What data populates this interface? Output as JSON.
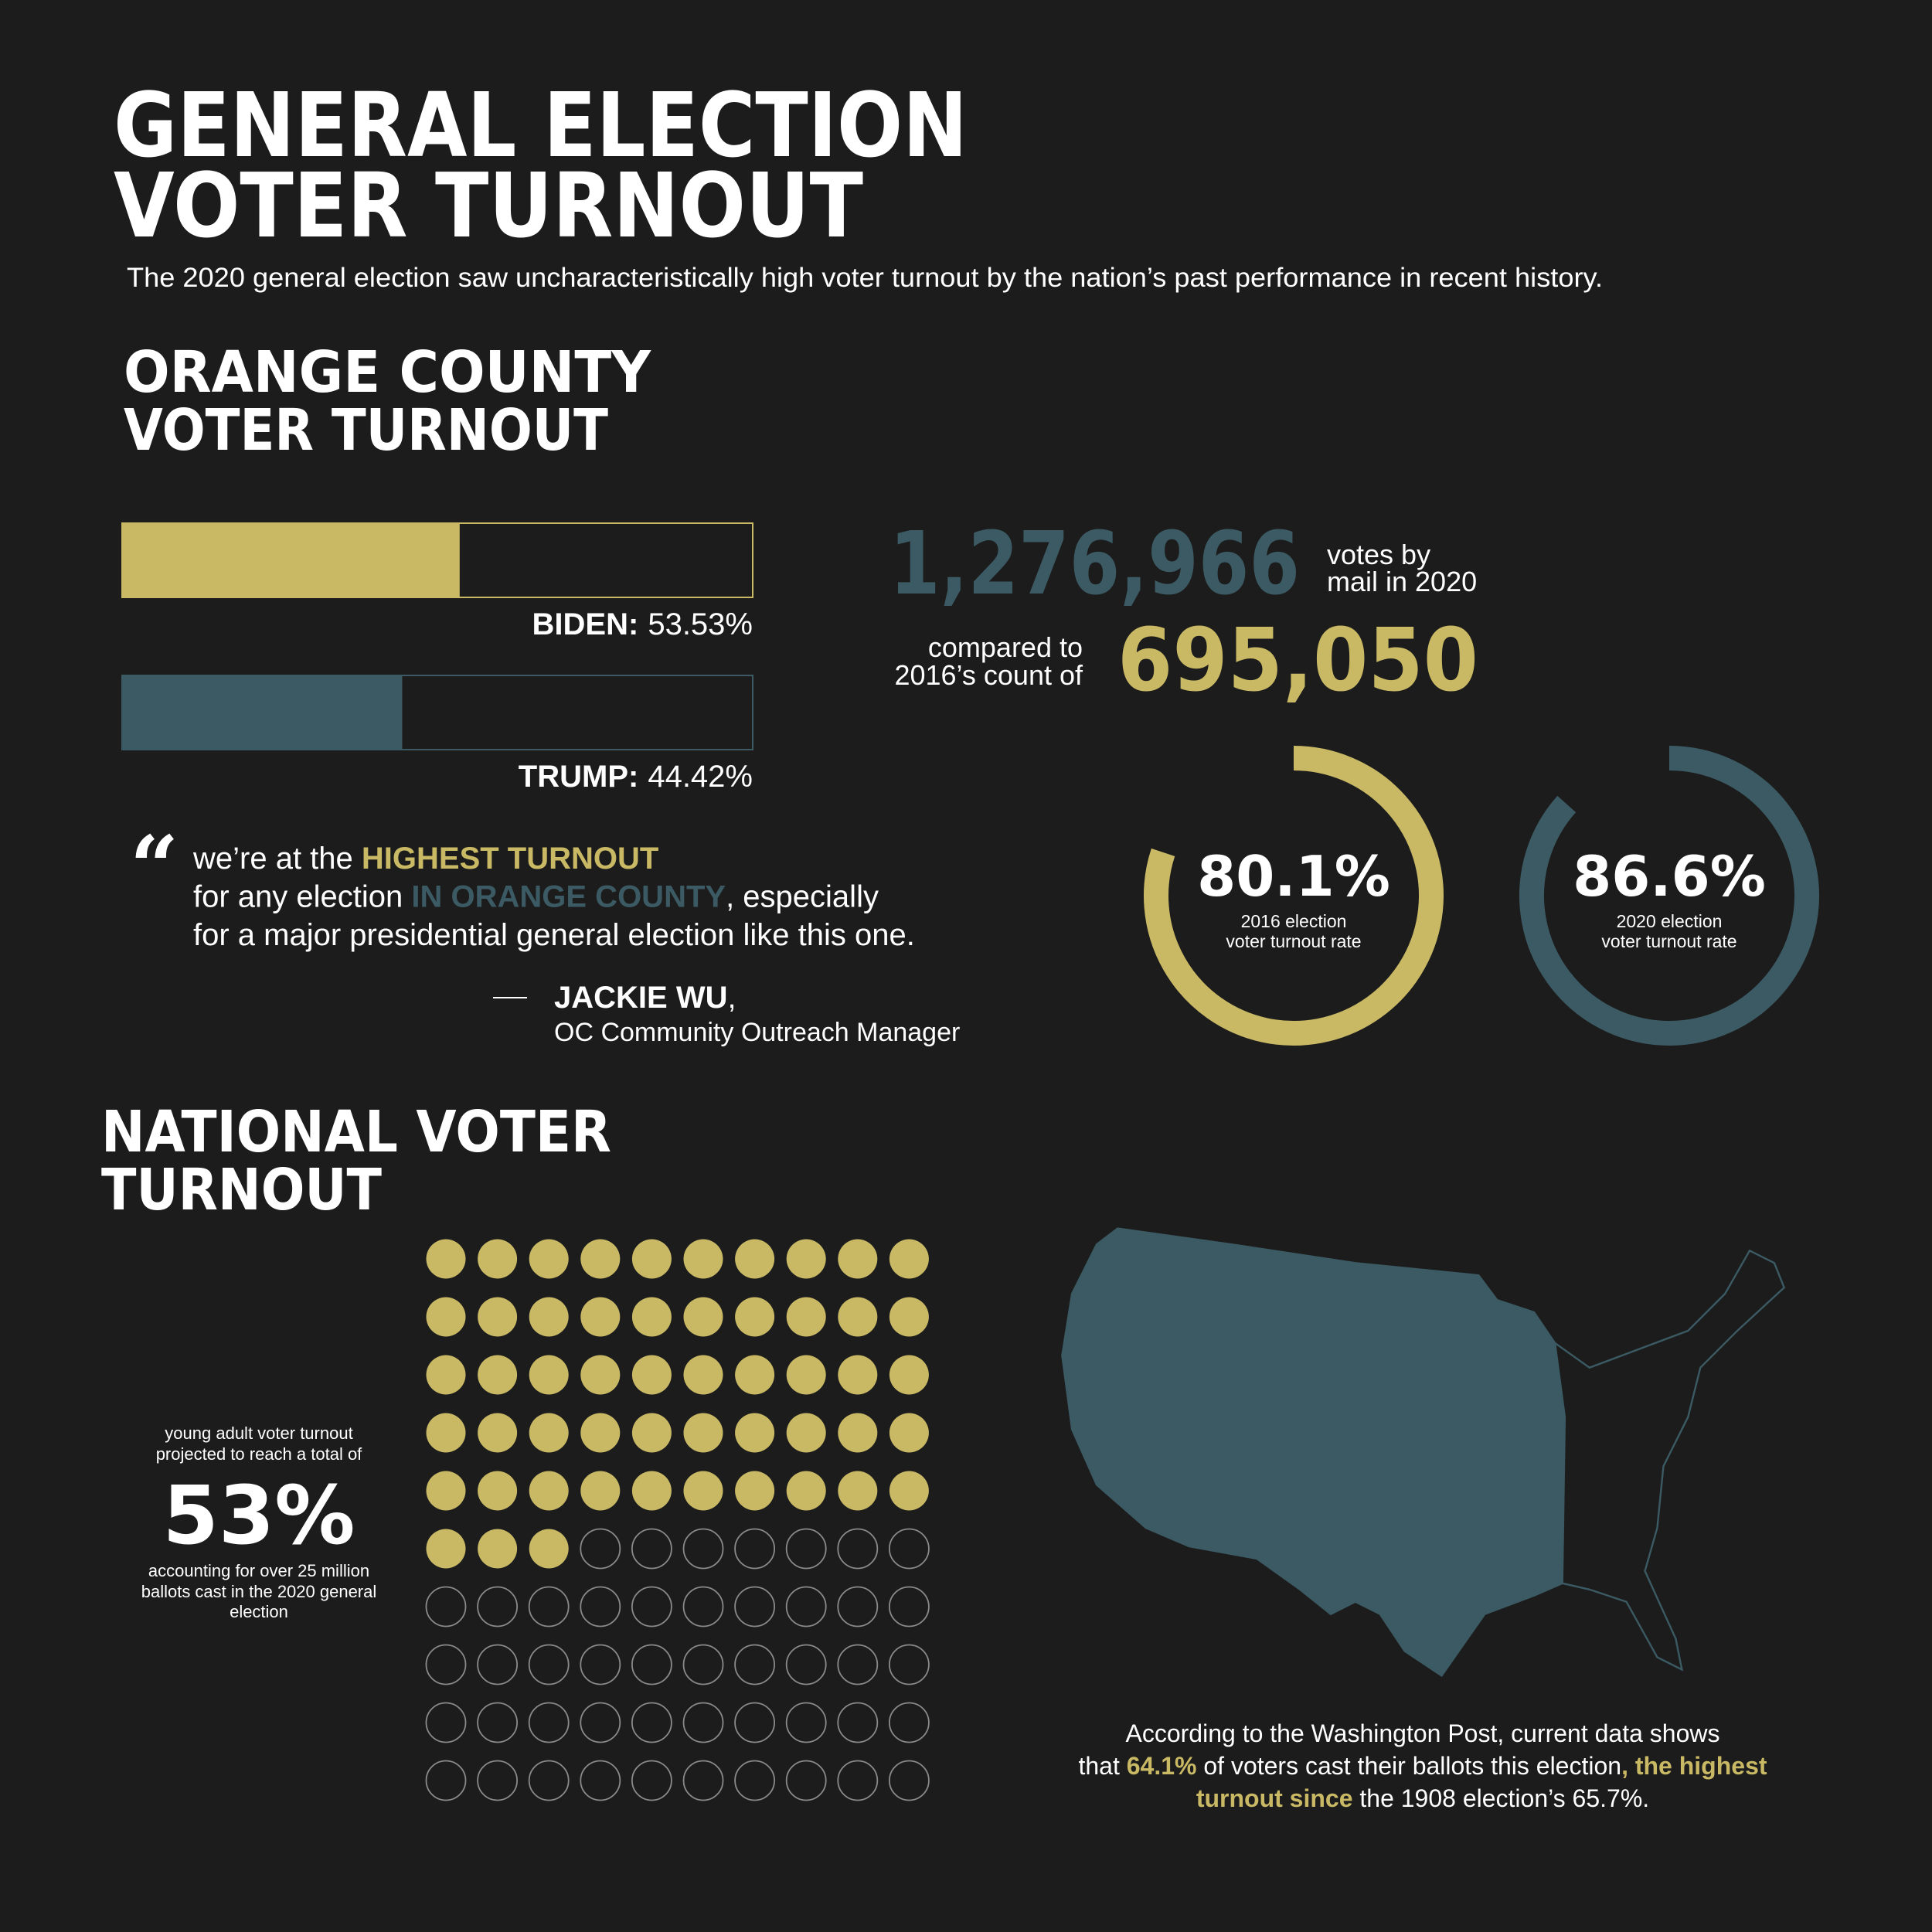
{
  "header": {
    "title_line1": "GENERAL ELECTION",
    "title_line2": "VOTER TURNOUT",
    "subtitle": "The 2020 general election saw uncharacteristically high voter turnout by the nation’s past performance in recent history."
  },
  "orange_county": {
    "title_line1": "ORANGE COUNTY",
    "title_line2": "VOTER TURNOUT",
    "bars": {
      "xlim": [
        0,
        100
      ],
      "items": [
        {
          "name": "BIDEN:",
          "value": 53.53,
          "value_label": "53.53%",
          "color": "#c9b965"
        },
        {
          "name": "TRUMP:",
          "value": 44.42,
          "value_label": "44.42%",
          "color": "#3b5a63"
        }
      ]
    },
    "mail": {
      "count": "1,276,966",
      "count_note_line1": "votes by",
      "count_note_line2": "mail in 2020",
      "compare_line1": "compared to",
      "compare_line2": "2016’s count of",
      "prior_count": "695,050"
    },
    "rings": {
      "xlim": [
        0,
        100
      ],
      "items": [
        {
          "value": 80.1,
          "value_label": "80.1%",
          "caption_line1": "2016 election",
          "caption_line2": "voter turnout rate",
          "color": "#c9b965"
        },
        {
          "value": 86.6,
          "value_label": "86.6%",
          "caption_line1": "2020 election",
          "caption_line2": "voter turnout rate",
          "color": "#3b5a63"
        }
      ]
    },
    "quote": {
      "mark": "“",
      "lines": [
        [
          {
            "text": "we’re at the ",
            "style": "plain"
          },
          {
            "text": "HIGHEST TURNOUT",
            "style": "gold"
          }
        ],
        [
          {
            "text": "for any election ",
            "style": "plain"
          },
          {
            "text": "IN ORANGE COUNTY",
            "style": "teal"
          },
          {
            "text": ", especially",
            "style": "plain"
          }
        ],
        [
          {
            "text": "for a major presidential general election like this one.",
            "style": "plain"
          }
        ]
      ],
      "author": "JACKIE WU",
      "author_suffix": ",",
      "role": "OC Community Outreach Manager"
    }
  },
  "national": {
    "title_line1": "NATIONAL VOTER",
    "title_line2": "TURNOUT",
    "waffle": {
      "xlim": [
        0,
        100
      ],
      "value": 53,
      "value_label": "53%",
      "color": "#c9b965",
      "intro_line1": "young adult voter turnout",
      "intro_line2": "projected to reach a total of",
      "note_line1": "accounting for over 25 million",
      "note_line2": "ballots cast in the 2020 general",
      "note_line3": "election"
    },
    "footer_lines": [
      [
        {
          "text": "According to the Washington Post, current data shows",
          "style": "plain"
        }
      ],
      [
        {
          "text": "that ",
          "style": "plain"
        },
        {
          "text": "64.1%",
          "style": "gold"
        },
        {
          "text": " of voters cast their ballots this election",
          "style": "plain"
        },
        {
          "text": ", the highest",
          "style": "gold"
        }
      ],
      [
        {
          "text": "turnout since",
          "style": "gold"
        },
        {
          "text": " the 1908 election’s 65.7%.",
          "style": "plain"
        }
      ]
    ]
  }
}
